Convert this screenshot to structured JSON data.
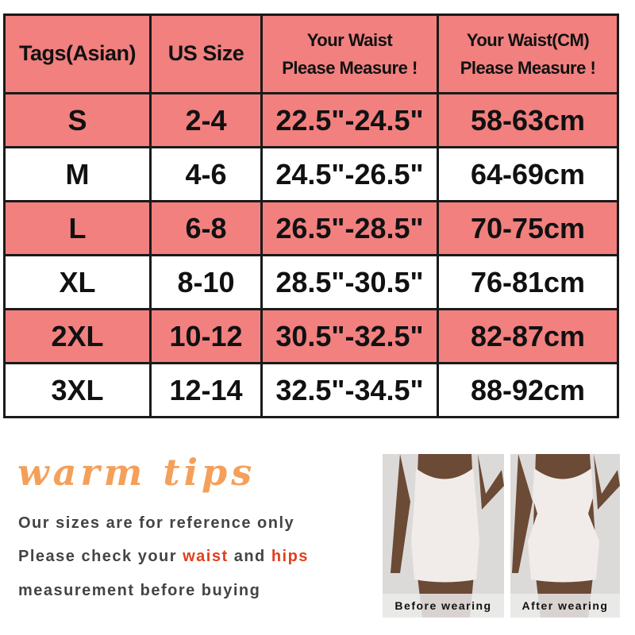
{
  "table": {
    "headers": [
      {
        "line1": "Tags(Asian)",
        "line2": ""
      },
      {
        "line1": "US Size",
        "line2": ""
      },
      {
        "line1": "Your Waist",
        "line2": "Please Measure !"
      },
      {
        "line1": "Your Waist(CM)",
        "line2": "Please Measure !"
      }
    ],
    "rows": [
      [
        "S",
        "2-4",
        "22.5\"-24.5\"",
        "58-63cm"
      ],
      [
        "M",
        "4-6",
        "24.5\"-26.5\"",
        "64-69cm"
      ],
      [
        "L",
        "6-8",
        "26.5\"-28.5\"",
        "70-75cm"
      ],
      [
        "XL",
        "8-10",
        "28.5\"-30.5\"",
        "76-81cm"
      ],
      [
        "2XL",
        "10-12",
        "30.5\"-32.5\"",
        "82-87cm"
      ],
      [
        "3XL",
        "12-14",
        "32.5\"-34.5\"",
        "88-92cm"
      ]
    ],
    "pink_color": "#f1807f"
  },
  "tips": {
    "title": "warm tips",
    "line1": "Our sizes are for reference only",
    "line2_pre": "Please check your ",
    "line2_waist": "waist",
    "line2_mid": " and ",
    "line2_hips": "hips",
    "line3": "measurement before buying",
    "title_color": "#f4a05a",
    "highlight_color": "#e0401c"
  },
  "photos": {
    "before": "Before wearing",
    "after": "After wearing"
  }
}
